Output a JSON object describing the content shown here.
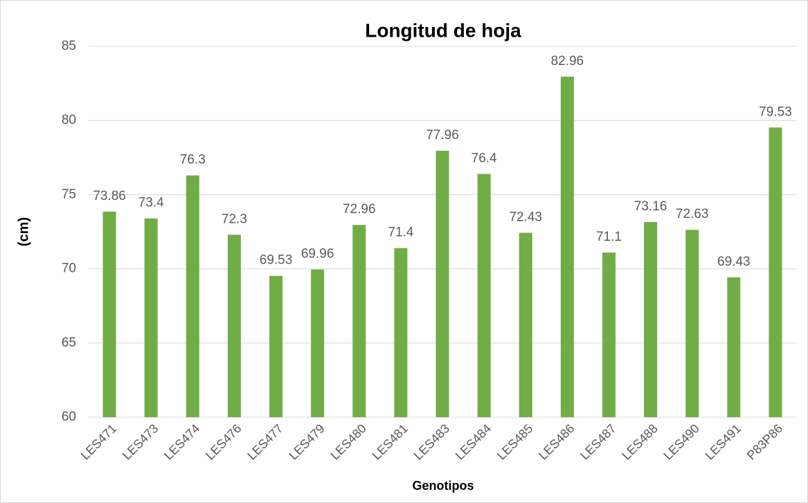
{
  "chart_data": {
    "type": "bar",
    "title": "Longitud de hoja",
    "x_label": "Genotipos",
    "y_label": "(cm)",
    "categories": [
      "LES471",
      "LES473",
      "LES474",
      "LES476",
      "LES477",
      "LES479",
      "LES480",
      "LES481",
      "LES483",
      "LES484",
      "LES485",
      "LES486",
      "LES487",
      "LES488",
      "LES490",
      "LES491",
      "P83P86"
    ],
    "values": [
      73.86,
      73.4,
      76.3,
      72.3,
      69.53,
      69.96,
      72.96,
      71.4,
      77.96,
      76.4,
      72.43,
      82.96,
      71.1,
      73.16,
      72.63,
      69.43,
      79.53
    ],
    "color": "#70ad47",
    "ylim": [
      60,
      85
    ],
    "yticks": [
      60,
      65,
      70,
      75,
      80,
      85
    ],
    "grid": true
  }
}
